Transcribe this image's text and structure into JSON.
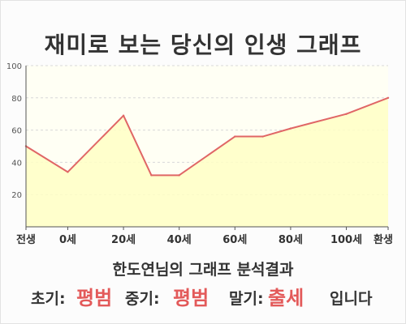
{
  "title": "재미로 보는 당신의 인생 그래프",
  "chart_data": {
    "type": "area",
    "x": [
      -15,
      0,
      20,
      30,
      40,
      60,
      70,
      80,
      100,
      115
    ],
    "values": [
      50,
      34,
      69,
      32,
      32,
      56,
      56,
      61,
      70,
      80
    ],
    "x_ticks": [
      {
        "x": -15,
        "label": "전생"
      },
      {
        "x": 0,
        "label": "0세"
      },
      {
        "x": 20,
        "label": "20세"
      },
      {
        "x": 40,
        "label": "40세"
      },
      {
        "x": 60,
        "label": "60세"
      },
      {
        "x": 80,
        "label": "80세"
      },
      {
        "x": 100,
        "label": "100세"
      },
      {
        "x": 115,
        "label": "환생"
      }
    ],
    "y_ticks": [
      20,
      40,
      60,
      80,
      100
    ],
    "ylim": [
      0,
      100
    ],
    "xlim": [
      -15,
      115
    ],
    "colors": {
      "line": "#e06666",
      "fill": "#ffffc4",
      "grid": "#d8d8d8",
      "axis": "#555555"
    },
    "grid": true
  },
  "result": {
    "subtitle": "한도연님의 그래프 분석결과",
    "early_label": "초기:",
    "early_value": "평범",
    "middle_label": "중기:",
    "middle_value": "평범",
    "late_label": "말기:",
    "late_value": "출세",
    "ending": "입니다"
  }
}
